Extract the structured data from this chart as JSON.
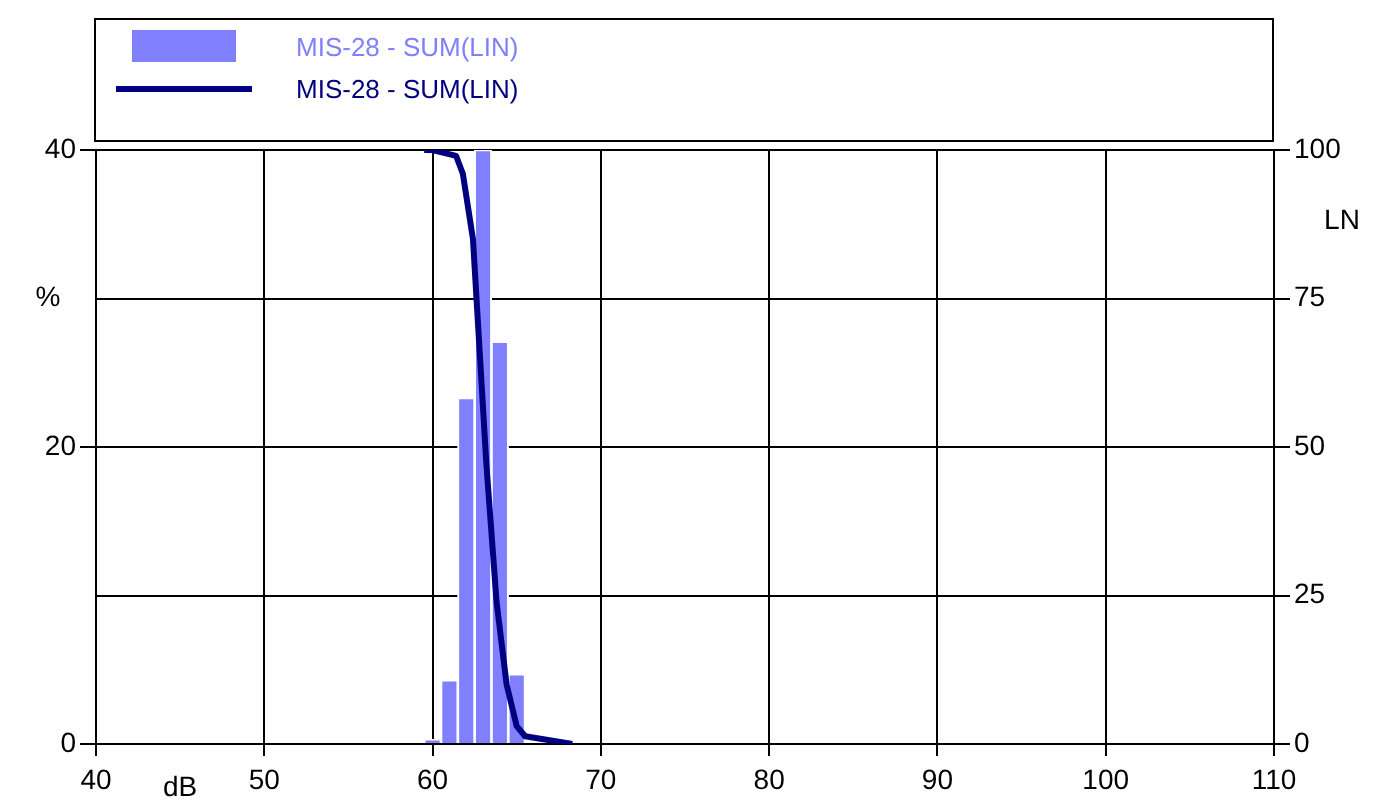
{
  "chart_data": {
    "type": "histogram",
    "bins": [
      59.5,
      60.5,
      61.5,
      62.5,
      63.5,
      64.5,
      65.5
    ],
    "series": [
      {
        "name": "MIS-28 - SUM(LIN)",
        "color": "#8080ff",
        "values": [
          0.3,
          4.3,
          23.3,
          40,
          27.1,
          4.7
        ]
      },
      {
        "name": "MIS-28 - SUM(LIN)",
        "type": "line",
        "axis": "y2",
        "color": "#000080",
        "x": [
          59.5,
          60,
          61.4,
          61.8,
          62.4,
          62.8,
          63.2,
          63.8,
          64.4,
          65.0,
          65.5,
          68.3
        ],
        "values": [
          100,
          100,
          99,
          96,
          85,
          66,
          47,
          24,
          10,
          3,
          1.3,
          0
        ]
      }
    ],
    "xlabel": "dB",
    "ylabel": "%",
    "y2label": "LN",
    "xlim": [
      40,
      110
    ],
    "xticks": [
      40,
      50,
      60,
      70,
      80,
      90,
      100,
      110
    ],
    "ylim": [
      0,
      40
    ],
    "yticks": [
      0,
      20,
      40
    ],
    "y2lim": [
      0,
      100
    ],
    "y2ticks": [
      0,
      25,
      50,
      75,
      100
    ],
    "grid": true,
    "legend": "top"
  }
}
